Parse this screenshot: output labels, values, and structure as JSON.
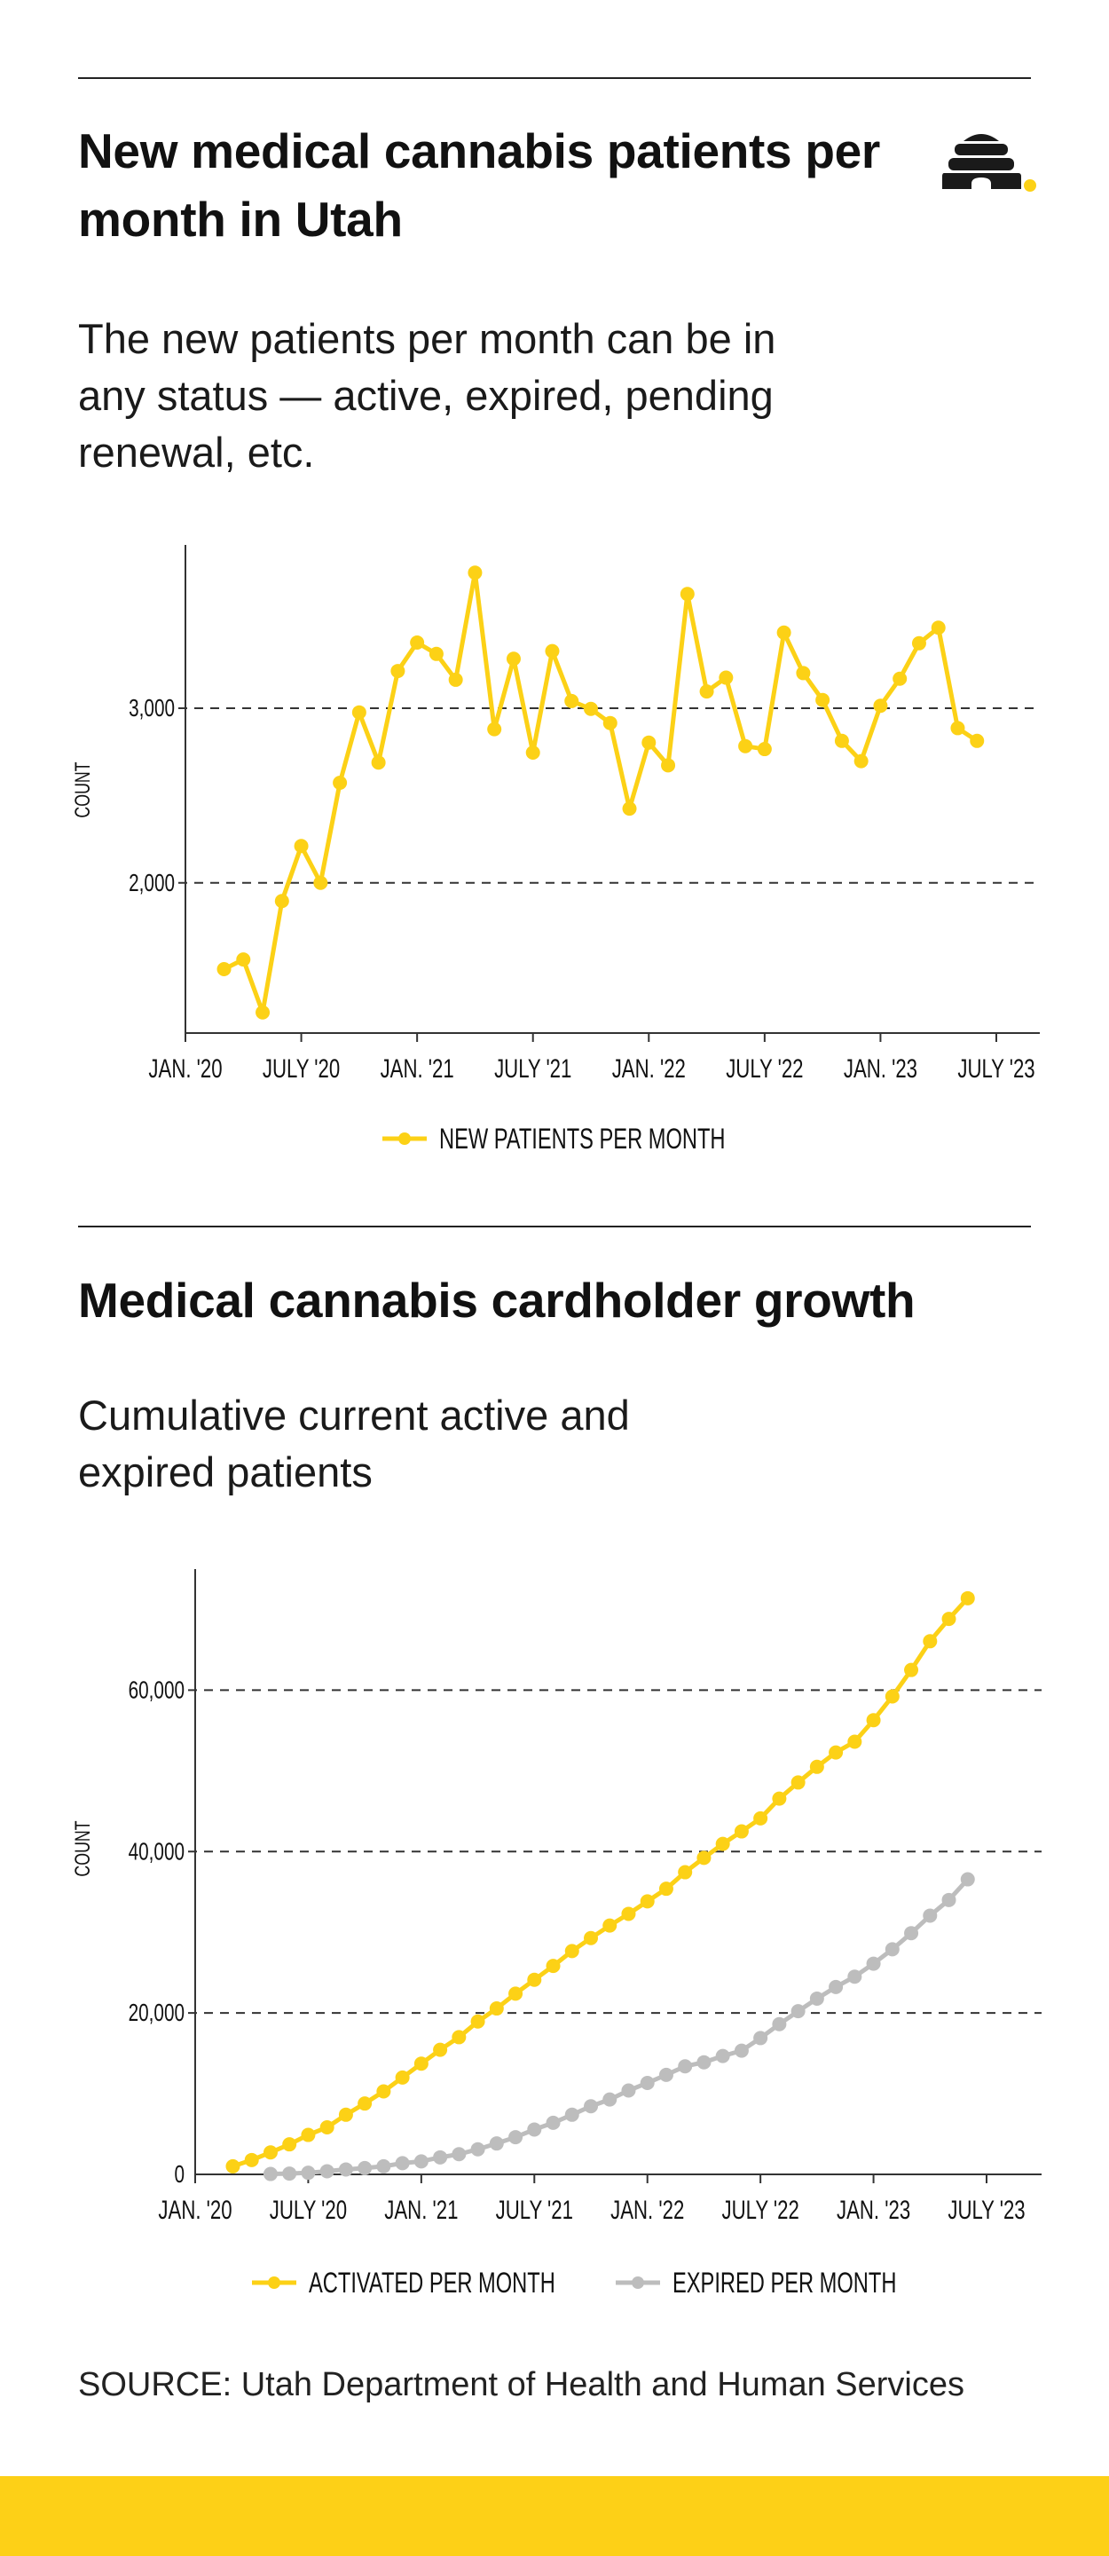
{
  "colors": {
    "yellow": "#FCD116",
    "gray": "#BDBDBD",
    "footer": "#FDD017",
    "axis": "#333333"
  },
  "logo": {
    "icon": "beehive-icon"
  },
  "chart_data": [
    {
      "type": "line",
      "title": "New medical cannabis patients per month in Utah",
      "subtitle": "The new patients per month can be in any status — active, expired, pending renewal, etc.",
      "ylabel": "COUNT",
      "xlabel": "",
      "ylim": [
        1140,
        3935
      ],
      "xlim": [
        "2020-01",
        "2023-09"
      ],
      "grid": true,
      "legend_position": "bottom",
      "yticks": [
        {
          "value": 2000,
          "label": "2,000"
        },
        {
          "value": 3000,
          "label": "3,000"
        }
      ],
      "xticks": [
        {
          "value": "2020-01",
          "label": "JAN. '20"
        },
        {
          "value": "2020-07",
          "label": "JULY '20"
        },
        {
          "value": "2021-01",
          "label": "JAN. '21"
        },
        {
          "value": "2021-07",
          "label": "JULY '21"
        },
        {
          "value": "2022-01",
          "label": "JAN. '22"
        },
        {
          "value": "2022-07",
          "label": "JULY '22"
        },
        {
          "value": "2023-01",
          "label": "JAN. '23"
        },
        {
          "value": "2023-07",
          "label": "JULY '23"
        }
      ],
      "series": [
        {
          "name": "NEW PATIENTS PER MONTH",
          "color": "#FCD116",
          "start": "2020-03",
          "values": [
            1506,
            1561,
            1258,
            1896,
            2211,
            2000,
            2573,
            2976,
            2689,
            3213,
            3376,
            3311,
            3163,
            3776,
            2880,
            3283,
            2746,
            3327,
            3041,
            2996,
            2915,
            2425,
            2803,
            2673,
            3654,
            3096,
            3175,
            2783,
            2766,
            3433,
            3201,
            3047,
            2813,
            2697,
            3014,
            3169,
            3372,
            3461,
            2886,
            2813
          ]
        }
      ]
    },
    {
      "type": "line",
      "title": "Medical cannabis cardholder growth",
      "subtitle": "Cumulative current active and expired patients",
      "ylabel": "COUNT",
      "xlabel": "",
      "ylim": [
        0,
        75000
      ],
      "xlim": [
        "2020-01",
        "2023-09"
      ],
      "grid": true,
      "legend_position": "bottom",
      "yticks": [
        {
          "value": 0,
          "label": "0"
        },
        {
          "value": 20000,
          "label": "20,000"
        },
        {
          "value": 40000,
          "label": "40,000"
        },
        {
          "value": 60000,
          "label": "60,000"
        }
      ],
      "xticks": [
        {
          "value": "2020-01",
          "label": "JAN. '20"
        },
        {
          "value": "2020-07",
          "label": "JULY '20"
        },
        {
          "value": "2021-01",
          "label": "JAN. '21"
        },
        {
          "value": "2021-07",
          "label": "JULY '21"
        },
        {
          "value": "2022-01",
          "label": "JAN. '22"
        },
        {
          "value": "2022-07",
          "label": "JULY '22"
        },
        {
          "value": "2023-01",
          "label": "JAN. '23"
        },
        {
          "value": "2023-07",
          "label": "JULY '23"
        }
      ],
      "series": [
        {
          "name": "ACTIVATED PER MONTH",
          "color": "#FCD116",
          "start": "2020-03",
          "values": [
            1000,
            1780,
            2720,
            3720,
            4890,
            5830,
            7390,
            8780,
            10280,
            12000,
            13720,
            15440,
            17000,
            18940,
            20560,
            22390,
            24110,
            25830,
            27670,
            29280,
            30830,
            32280,
            33830,
            35390,
            37440,
            39220,
            40950,
            42500,
            44110,
            46560,
            48560,
            50500,
            52280,
            53610,
            56280,
            59220,
            62500,
            66060,
            68830,
            71390
          ]
        },
        {
          "name": "EXPIRED PER MONTH",
          "color": "#BDBDBD",
          "start": "2020-05",
          "values": [
            50,
            100,
            200,
            390,
            610,
            780,
            1000,
            1390,
            1610,
            2110,
            2500,
            3110,
            3830,
            4610,
            5560,
            6390,
            7390,
            8440,
            9280,
            10390,
            11330,
            12330,
            13390,
            13890,
            14670,
            15330,
            16890,
            18610,
            20220,
            21780,
            23220,
            24500,
            26110,
            27890,
            29890,
            32060,
            34000,
            36560
          ]
        }
      ]
    }
  ],
  "source": "SOURCE: Utah Department of Health and Human Services"
}
